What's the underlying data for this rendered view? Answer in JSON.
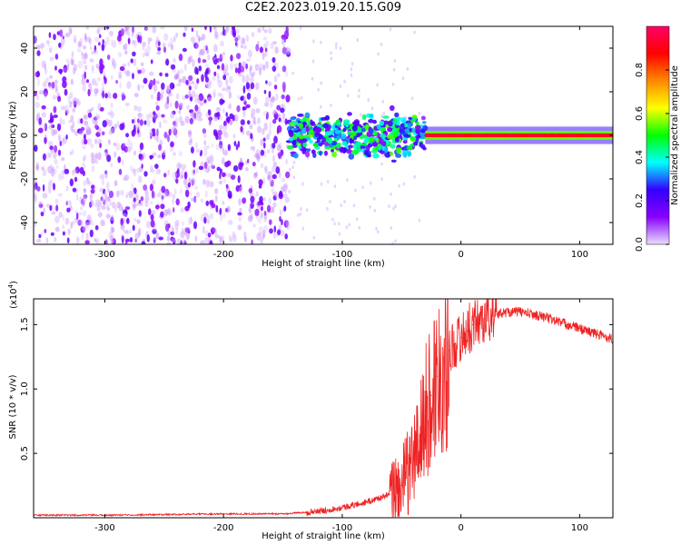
{
  "title": "C2E2.2023.019.20.15.G09",
  "chart_data": [
    {
      "type": "heatmap",
      "xlabel": "Height of straight line (km)",
      "ylabel": "Frequency (Hz)",
      "xlim": [
        -360,
        128
      ],
      "ylim": [
        -50,
        50
      ],
      "xticks": [
        -300,
        -200,
        -100,
        0,
        100
      ],
      "yticks": [
        -40,
        -20,
        0,
        20,
        40
      ],
      "colorbar": {
        "label": "Normalized spectral amplitude",
        "range": [
          0,
          1
        ],
        "ticks": [
          "0.0",
          "0.2",
          "0.4",
          "0.6",
          "0.8"
        ],
        "colors": [
          "#e8e0ff",
          "#8800ff",
          "#3300ff",
          "#00ffff",
          "#00ff00",
          "#ffff00",
          "#ff8800",
          "#ff0000",
          "#ff0066"
        ]
      },
      "regions": [
        {
          "x_range": [
            -360,
            -145
          ],
          "description": "scattered low-amplitude noise",
          "amplitude": 0.15
        },
        {
          "x_range": [
            -145,
            -30
          ],
          "description": "broadened signal near 0 Hz",
          "amplitude": 0.45
        },
        {
          "x_range": [
            -30,
            128
          ],
          "description": "sharp signal at 0 Hz",
          "amplitude": 0.9
        }
      ]
    },
    {
      "type": "line",
      "xlabel": "Height of straight line (km)",
      "ylabel": "SNR (10 * v/v)",
      "yscale_label": "(x10",
      "yscale_exp": "4",
      "xlim": [
        -360,
        128
      ],
      "ylim": [
        0,
        1.7
      ],
      "xticks": [
        -300,
        -200,
        -100,
        0,
        100
      ],
      "yticks": [
        "0.5",
        "1.0",
        "1.5"
      ],
      "ytick_values": [
        0.5,
        1.0,
        1.5
      ],
      "color": "#ee2222",
      "series": [
        {
          "x": [
            -360,
            -300,
            -250,
            -200,
            -150,
            -120,
            -100,
            -80,
            -60,
            -50,
            -40,
            -35,
            -30,
            -25,
            -20,
            -15,
            -10,
            -5,
            0,
            5,
            10,
            20,
            30,
            40,
            50,
            60,
            70,
            80,
            90,
            100,
            110,
            120,
            128
          ],
          "values": [
            0.02,
            0.02,
            0.025,
            0.03,
            0.03,
            0.05,
            0.08,
            0.12,
            0.18,
            0.25,
            0.45,
            0.6,
            0.8,
            0.95,
            1.1,
            1.2,
            1.3,
            1.35,
            1.4,
            1.45,
            1.5,
            1.55,
            1.58,
            1.6,
            1.6,
            1.58,
            1.56,
            1.53,
            1.5,
            1.47,
            1.44,
            1.41,
            1.39
          ]
        }
      ]
    }
  ]
}
